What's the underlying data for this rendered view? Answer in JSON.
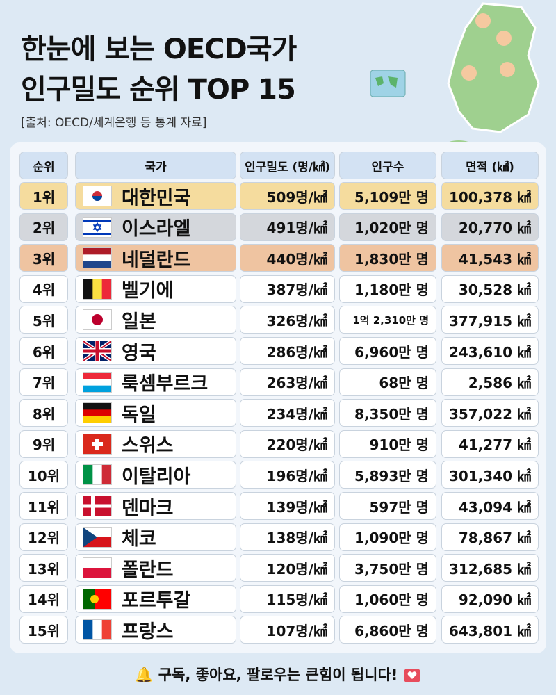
{
  "header": {
    "title_lines": [
      "한눈에 보는 OECD국가",
      "인구밀도 순위 TOP 15"
    ],
    "source": "[출처: OECD/세계은행 등 통계 자료]"
  },
  "table": {
    "header": [
      "순위",
      "국가",
      "인구밀도 (명/㎢)",
      "인구수",
      "면적 (㎢)"
    ],
    "rows": [
      [
        "1위",
        "대한민국",
        "509명/㎢",
        "5,109만 명",
        "100,378 ㎢"
      ],
      [
        "2위",
        "이스라엘",
        "491명/㎢",
        "1,020만 명",
        "20,770 ㎢"
      ],
      [
        "3위",
        "네덜란드",
        "440명/㎢",
        "1,830만 명",
        "41,543 ㎢"
      ],
      [
        "4위",
        "벨기에",
        "387명/㎢",
        "1,180만 명",
        "30,528 ㎢"
      ],
      [
        "5위",
        "일본",
        "326명/㎢",
        "1억 2,310만 명",
        "377,915 ㎢"
      ],
      [
        "6위",
        "영국",
        "286명/㎢",
        "6,960만 명",
        "243,610 ㎢"
      ],
      [
        "7위",
        "룩셈부르크",
        "263명/㎢",
        "68만 명",
        "2,586 ㎢"
      ],
      [
        "8위",
        "독일",
        "234명/㎢",
        "8,350만 명",
        "357,022 ㎢"
      ],
      [
        "9위",
        "스위스",
        "220명/㎢",
        "910만 명",
        "41,277 ㎢"
      ],
      [
        "10위",
        "이탈리아",
        "196명/㎢",
        "5,893만 명",
        "301,340 ㎢"
      ],
      [
        "11위",
        "덴마크",
        "139명/㎢",
        "597만 명",
        "43,094 ㎢"
      ],
      [
        "12위",
        "체코",
        "138명/㎢",
        "1,090만 명",
        "78,867 ㎢"
      ],
      [
        "13위",
        "폴란드",
        "120명/㎢",
        "3,750만 명",
        "312,685 ㎢"
      ],
      [
        "14위",
        "포르투갈",
        "115명/㎢",
        "1,060만 명",
        "92,090 ㎢"
      ],
      [
        "15위",
        "프랑스",
        "107명/㎢",
        "6,860만 명",
        "643,801 ㎢"
      ]
    ]
  },
  "footer": {
    "text": "구독, 좋아요, 팔로우는 큰힘이 됩니다!"
  }
}
